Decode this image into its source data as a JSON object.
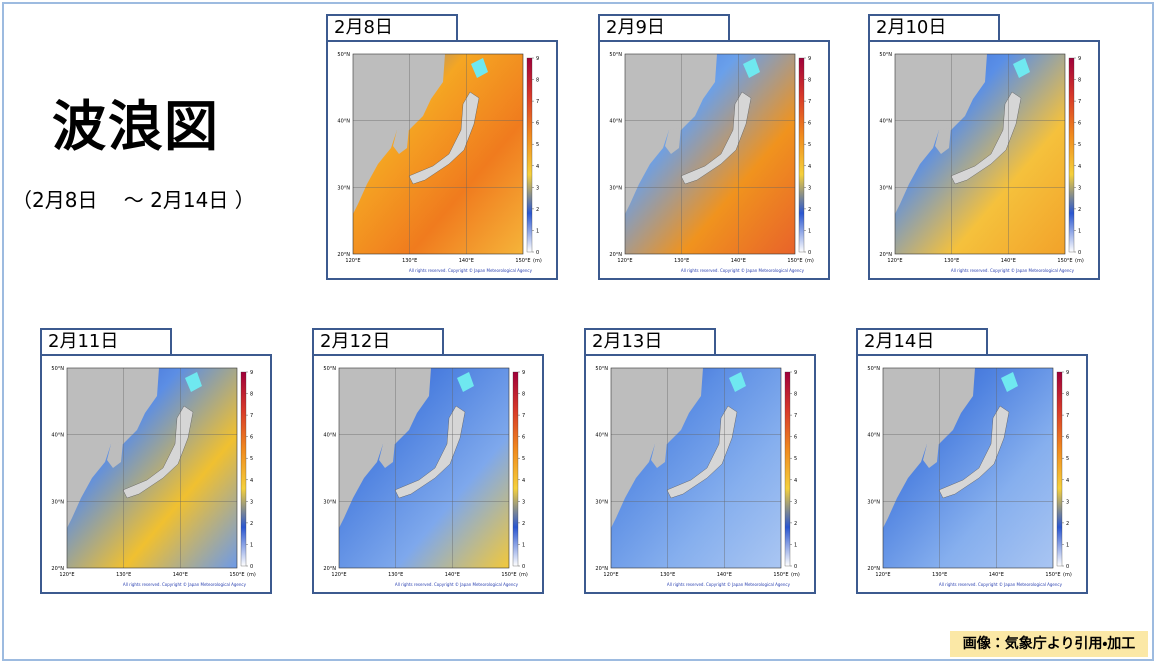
{
  "header": {
    "title": "波浪図",
    "subtitle": "（2月8日　 ～ 2月14日 ）"
  },
  "panels": [
    {
      "label": "2月8日"
    },
    {
      "label": "2月9日"
    },
    {
      "label": "2月10日"
    },
    {
      "label": "2月11日"
    },
    {
      "label": "2月12日"
    },
    {
      "label": "2月13日"
    },
    {
      "label": "2月14日"
    }
  ],
  "map": {
    "lat_labels": [
      "50°N",
      "40°N",
      "30°N",
      "20°N"
    ],
    "lon_labels": [
      "120°E",
      "130°E",
      "140°E",
      "150°E"
    ],
    "colorbar_ticks": [
      0,
      1,
      2,
      3,
      4,
      5,
      6,
      7,
      8,
      9
    ],
    "unit": "(m)",
    "copyright": "All rights reserved. Copyright © Japan Meteorological Agency"
  },
  "credit": "画像：気象庁より引用・加工"
}
